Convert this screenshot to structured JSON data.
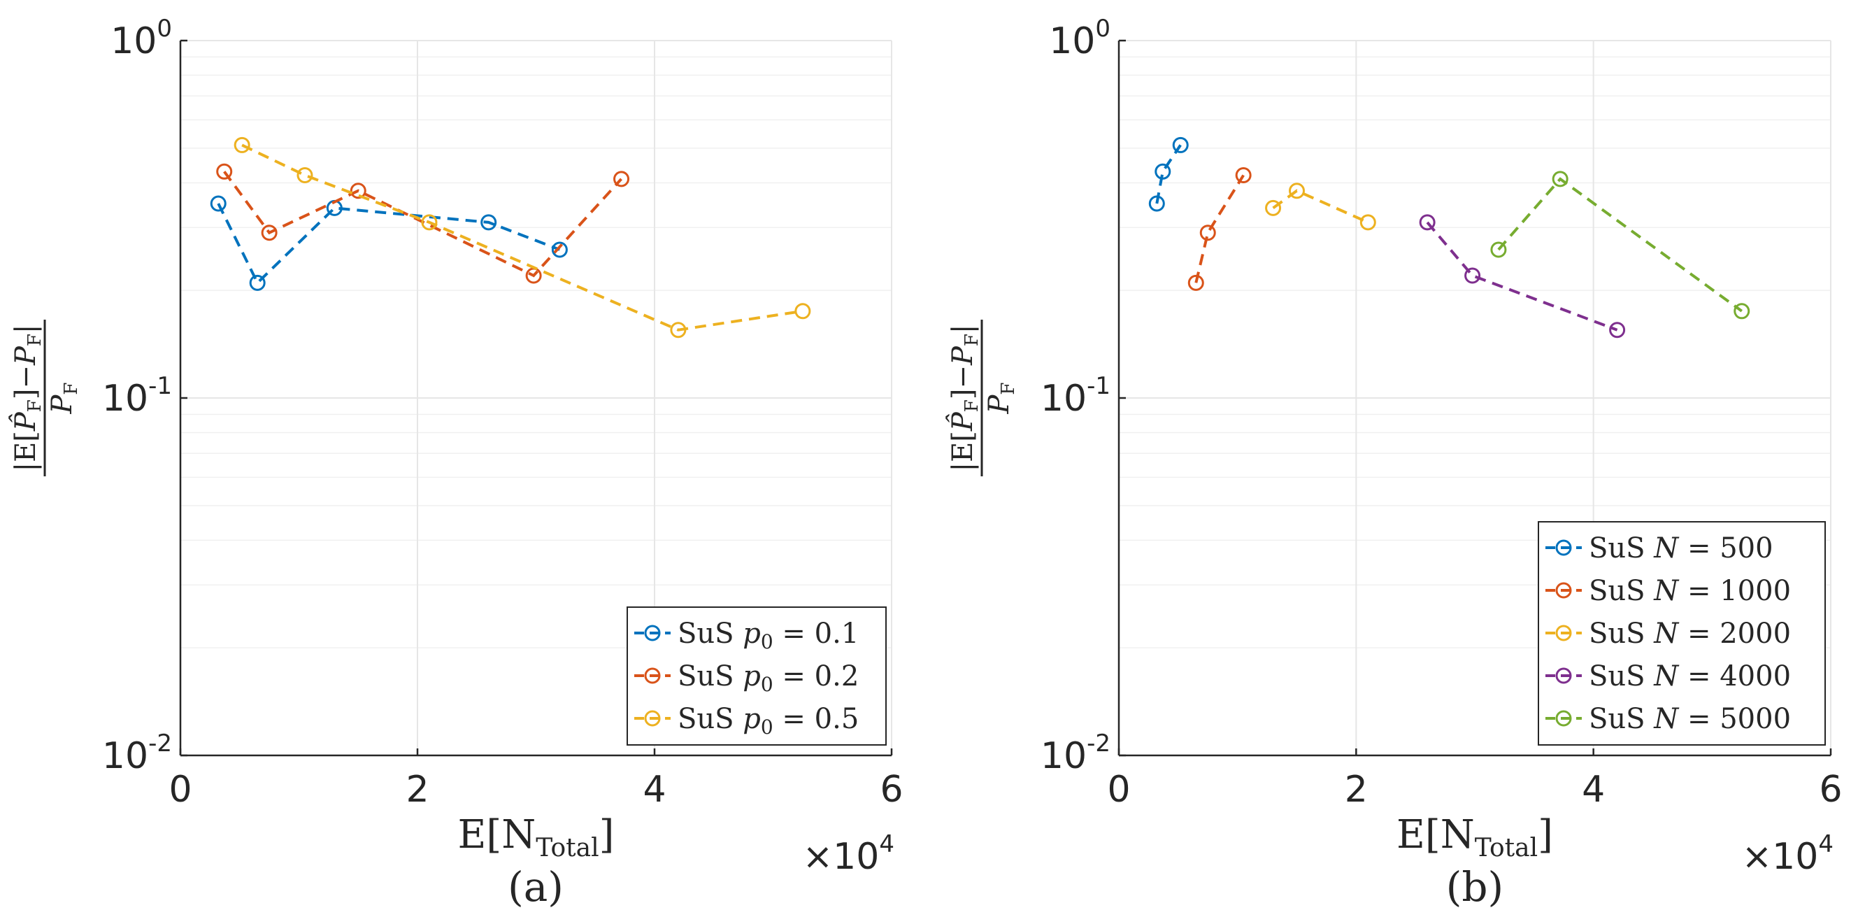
{
  "chart_data": [
    {
      "type": "line",
      "panel_caption": "(a)",
      "xlabel": "E[N_Total]",
      "xlabel_main": "E[N",
      "xlabel_sub": "Total",
      "xlabel_close": "]",
      "x_multiplier_base": "×10",
      "x_multiplier_exp": "4",
      "ylabel": "|E[P̂F]−PF| / PF",
      "yscale": "log",
      "xlim": [
        0,
        6
      ],
      "ylim": [
        0.01,
        1
      ],
      "xticks": [
        0,
        2,
        4,
        6
      ],
      "xtick_labels": [
        "0",
        "2",
        "4",
        "6"
      ],
      "ytick_labels": [
        {
          "base": "10",
          "exp": "0",
          "value": 1
        },
        {
          "base": "10",
          "exp": "-1",
          "value": 0.1
        },
        {
          "base": "10",
          "exp": "-2",
          "value": 0.01
        }
      ],
      "grid": true,
      "legend_position": "bottom-right",
      "series": [
        {
          "name": "SuS p0 = 0.1",
          "legend_prefix": "SuS ",
          "legend_var": "p",
          "legend_sub": "0",
          "legend_rest": " = 0.1",
          "color": "#0072BD",
          "points": [
            [
              0.32,
              0.35
            ],
            [
              0.65,
              0.21
            ],
            [
              1.3,
              0.34
            ],
            [
              2.6,
              0.31
            ],
            [
              3.2,
              0.26
            ]
          ]
        },
        {
          "name": "SuS p0 = 0.2",
          "legend_prefix": "SuS ",
          "legend_var": "p",
          "legend_sub": "0",
          "legend_rest": " = 0.2",
          "color": "#D95319",
          "points": [
            [
              0.37,
              0.43
            ],
            [
              0.75,
              0.29
            ],
            [
              1.5,
              0.38
            ],
            [
              2.98,
              0.22
            ],
            [
              3.72,
              0.41
            ]
          ]
        },
        {
          "name": "SuS p0 = 0.5",
          "legend_prefix": "SuS ",
          "legend_var": "p",
          "legend_sub": "0",
          "legend_rest": " = 0.5",
          "color": "#EDB120",
          "points": [
            [
              0.52,
              0.51
            ],
            [
              1.05,
              0.42
            ],
            [
              2.1,
              0.31
            ],
            [
              4.2,
              0.155
            ],
            [
              5.25,
              0.175
            ]
          ]
        }
      ]
    },
    {
      "type": "line",
      "panel_caption": "(b)",
      "xlabel": "E[N_Total]",
      "xlabel_main": "E[N",
      "xlabel_sub": "Total",
      "xlabel_close": "]",
      "x_multiplier_base": "×10",
      "x_multiplier_exp": "4",
      "ylabel": "|E[P̂F]−PF| / PF",
      "yscale": "log",
      "xlim": [
        0,
        6
      ],
      "ylim": [
        0.01,
        1
      ],
      "xticks": [
        0,
        2,
        4,
        6
      ],
      "xtick_labels": [
        "0",
        "2",
        "4",
        "6"
      ],
      "ytick_labels": [
        {
          "base": "10",
          "exp": "0",
          "value": 1
        },
        {
          "base": "10",
          "exp": "-1",
          "value": 0.1
        },
        {
          "base": "10",
          "exp": "-2",
          "value": 0.01
        }
      ],
      "grid": true,
      "legend_position": "bottom-right",
      "series": [
        {
          "name": "SuS N = 500",
          "legend_prefix": "SuS ",
          "legend_var": "N",
          "legend_sub": "",
          "legend_rest": " = 500",
          "color": "#0072BD",
          "points": [
            [
              0.32,
              0.35
            ],
            [
              0.37,
              0.43
            ],
            [
              0.52,
              0.51
            ]
          ]
        },
        {
          "name": "SuS N = 1000",
          "legend_prefix": "SuS ",
          "legend_var": "N",
          "legend_sub": "",
          "legend_rest": " = 1000",
          "color": "#D95319",
          "points": [
            [
              0.65,
              0.21
            ],
            [
              0.75,
              0.29
            ],
            [
              1.05,
              0.42
            ]
          ]
        },
        {
          "name": "SuS N = 2000",
          "legend_prefix": "SuS ",
          "legend_var": "N",
          "legend_sub": "",
          "legend_rest": " = 2000",
          "color": "#EDB120",
          "points": [
            [
              1.3,
              0.34
            ],
            [
              1.5,
              0.38
            ],
            [
              2.1,
              0.31
            ]
          ]
        },
        {
          "name": "SuS N = 4000",
          "legend_prefix": "SuS ",
          "legend_var": "N",
          "legend_sub": "",
          "legend_rest": " = 4000",
          "color": "#7E2F8E",
          "points": [
            [
              2.6,
              0.31
            ],
            [
              2.98,
              0.22
            ],
            [
              4.2,
              0.155
            ]
          ]
        },
        {
          "name": "SuS N = 5000",
          "legend_prefix": "SuS ",
          "legend_var": "N",
          "legend_sub": "",
          "legend_rest": " = 5000",
          "color": "#77AC30",
          "points": [
            [
              3.2,
              0.26
            ],
            [
              3.72,
              0.41
            ],
            [
              5.25,
              0.175
            ]
          ]
        }
      ]
    }
  ]
}
